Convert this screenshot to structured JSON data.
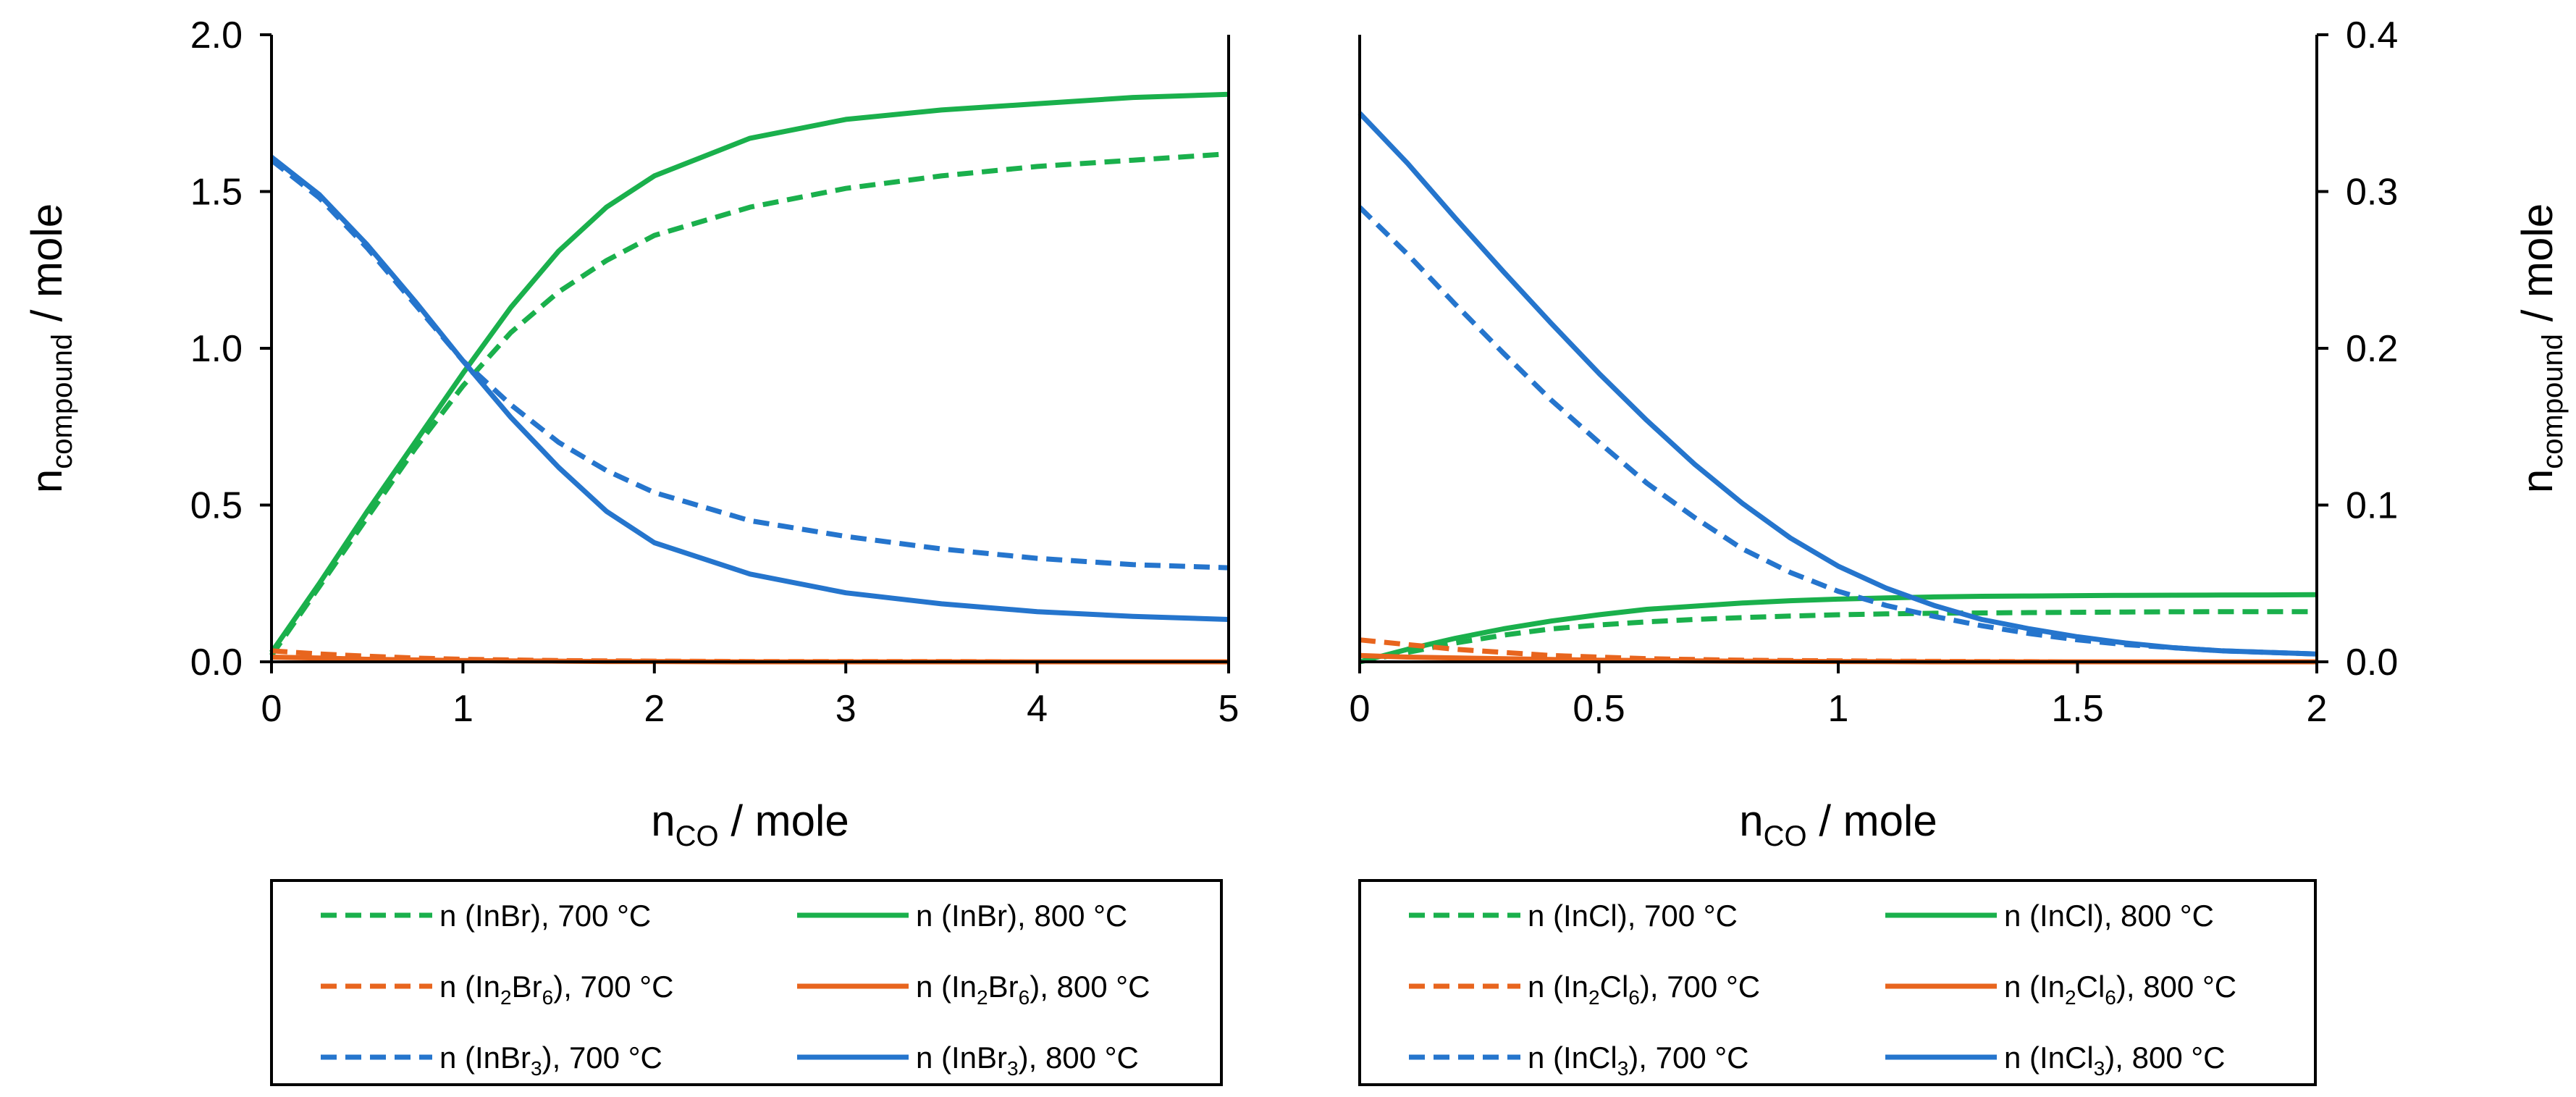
{
  "colors": {
    "green": "#1ab04c",
    "orange": "#e8651e",
    "blue": "#2575cd"
  },
  "chart_data": [
    {
      "type": "line",
      "xlabel": {
        "main": "n",
        "sub": "CO",
        "rest": " / mole"
      },
      "ylabel": {
        "main": "n",
        "sub": "compound",
        "rest": " / mole"
      },
      "xlim": [
        0,
        5
      ],
      "ylim": [
        0,
        2
      ],
      "xticks": [
        0,
        1,
        2,
        3,
        4,
        5
      ],
      "xtick_labels": [
        "0",
        "1",
        "2",
        "3",
        "4",
        "5"
      ],
      "yticks": [
        0,
        0.5,
        1,
        1.5,
        2
      ],
      "ytick_labels": [
        "0.0",
        "0.5",
        "1.0",
        "1.5",
        "2.0"
      ],
      "yaxis_side": "left",
      "x": [
        0,
        0.25,
        0.5,
        0.75,
        1,
        1.25,
        1.5,
        1.75,
        2,
        2.5,
        3,
        3.5,
        4,
        4.5,
        5
      ],
      "series": [
        {
          "name_pre": "n (InBr), 700 °C",
          "name_sub": "",
          "name_post": "",
          "color": "green",
          "dash": true,
          "values": [
            0.02,
            0.24,
            0.46,
            0.68,
            0.88,
            1.05,
            1.18,
            1.28,
            1.36,
            1.45,
            1.51,
            1.55,
            1.58,
            1.6,
            1.62
          ]
        },
        {
          "name_pre": "n (InBr), 800 °C",
          "name_sub": "",
          "name_post": "",
          "color": "green",
          "dash": false,
          "values": [
            0.03,
            0.25,
            0.48,
            0.7,
            0.92,
            1.13,
            1.31,
            1.45,
            1.55,
            1.67,
            1.73,
            1.76,
            1.78,
            1.8,
            1.81
          ]
        },
        {
          "name_pre": "n (In",
          "name_sub": "2",
          "name_post": "Br6), 700 °C",
          "color": "orange",
          "dash": true,
          "values": [
            0.035,
            0.025,
            0.018,
            0.012,
            0.008,
            0.006,
            0.004,
            0.003,
            0.002,
            0.001,
            0.001,
            0.001,
            0.0,
            0.0,
            0.0
          ]
        },
        {
          "name_pre": "n (In",
          "name_sub": "2",
          "name_post": "Br6), 800 °C",
          "color": "orange",
          "dash": false,
          "values": [
            0.015,
            0.012,
            0.008,
            0.006,
            0.004,
            0.003,
            0.002,
            0.001,
            0.001,
            0.0,
            0.0,
            0.0,
            0.0,
            0.0,
            0.0
          ]
        },
        {
          "name_pre": "n (InBr",
          "name_sub": "3",
          "name_post": "), 700 °C",
          "color": "blue",
          "dash": true,
          "values": [
            1.6,
            1.48,
            1.32,
            1.14,
            0.96,
            0.82,
            0.7,
            0.61,
            0.54,
            0.45,
            0.4,
            0.36,
            0.33,
            0.31,
            0.3
          ]
        },
        {
          "name_pre": "n (InBr",
          "name_sub": "3",
          "name_post": "), 800 °C",
          "color": "blue",
          "dash": false,
          "values": [
            1.61,
            1.49,
            1.33,
            1.15,
            0.96,
            0.78,
            0.62,
            0.48,
            0.38,
            0.28,
            0.22,
            0.185,
            0.16,
            0.145,
            0.135
          ]
        }
      ]
    },
    {
      "type": "line",
      "xlabel": {
        "main": "n",
        "sub": "CO",
        "rest": " / mole"
      },
      "ylabel": {
        "main": "n",
        "sub": "compound",
        "rest": " / mole"
      },
      "xlim": [
        0,
        2
      ],
      "ylim": [
        0,
        0.4
      ],
      "xticks": [
        0,
        0.5,
        1,
        1.5,
        2
      ],
      "xtick_labels": [
        "0",
        "0.5",
        "1",
        "1.5",
        "2"
      ],
      "yticks": [
        0,
        0.1,
        0.2,
        0.3,
        0.4
      ],
      "ytick_labels": [
        "0.0",
        "0.1",
        "0.2",
        "0.3",
        "0.4"
      ],
      "yaxis_side": "right",
      "x": [
        0,
        0.1,
        0.2,
        0.3,
        0.4,
        0.5,
        0.6,
        0.7,
        0.8,
        0.9,
        1.0,
        1.1,
        1.2,
        1.3,
        1.4,
        1.5,
        1.6,
        1.7,
        1.8,
        1.9,
        2.0
      ],
      "series": [
        {
          "name_pre": "n (InCl), 700 °C",
          "name_sub": "",
          "name_post": "",
          "color": "green",
          "dash": true,
          "values": [
            0.0,
            0.006,
            0.012,
            0.017,
            0.021,
            0.0235,
            0.0255,
            0.027,
            0.0282,
            0.0292,
            0.03,
            0.0306,
            0.031,
            0.0312,
            0.0314,
            0.0316,
            0.0318,
            0.0319,
            0.032,
            0.032,
            0.032
          ]
        },
        {
          "name_pre": "n (InCl), 800 °C",
          "name_sub": "",
          "name_post": "",
          "color": "green",
          "dash": false,
          "values": [
            0.0,
            0.008,
            0.015,
            0.021,
            0.026,
            0.03,
            0.0335,
            0.0355,
            0.0375,
            0.039,
            0.04,
            0.0408,
            0.0414,
            0.0418,
            0.042,
            0.0422,
            0.0424,
            0.0425,
            0.0426,
            0.0427,
            0.0428
          ]
        },
        {
          "name_pre": "n (In",
          "name_sub": "2",
          "name_post": "Cl6), 700 °C",
          "color": "orange",
          "dash": true,
          "values": [
            0.014,
            0.011,
            0.008,
            0.006,
            0.004,
            0.003,
            0.002,
            0.0015,
            0.001,
            0.0008,
            0.0006,
            0.0004,
            0.0003,
            0.0002,
            0.0001,
            0.0,
            0.0,
            0.0,
            0.0,
            0.0,
            0.0
          ]
        },
        {
          "name_pre": "n (In",
          "name_sub": "2",
          "name_post": "Cl6), 800 °C",
          "color": "orange",
          "dash": false,
          "values": [
            0.004,
            0.003,
            0.0025,
            0.002,
            0.0015,
            0.001,
            0.0008,
            0.0006,
            0.0004,
            0.0003,
            0.0002,
            0.0001,
            0.0,
            0.0,
            0.0,
            0.0,
            0.0,
            0.0,
            0.0,
            0.0,
            0.0
          ]
        },
        {
          "name_pre": "n (InCl",
          "name_sub": "3",
          "name_post": "), 700 °C",
          "color": "blue",
          "dash": true,
          "values": [
            0.29,
            0.26,
            0.228,
            0.197,
            0.167,
            0.14,
            0.114,
            0.092,
            0.072,
            0.057,
            0.045,
            0.036,
            0.029,
            0.023,
            0.018,
            0.014,
            0.011,
            0.009,
            0.007,
            0.006,
            0.005
          ]
        },
        {
          "name_pre": "n (InCl",
          "name_sub": "3",
          "name_post": "), 800 °C",
          "color": "blue",
          "dash": false,
          "values": [
            0.35,
            0.318,
            0.283,
            0.249,
            0.216,
            0.184,
            0.154,
            0.126,
            0.101,
            0.079,
            0.061,
            0.047,
            0.036,
            0.027,
            0.021,
            0.016,
            0.012,
            0.009,
            0.007,
            0.006,
            0.005
          ]
        }
      ]
    }
  ]
}
